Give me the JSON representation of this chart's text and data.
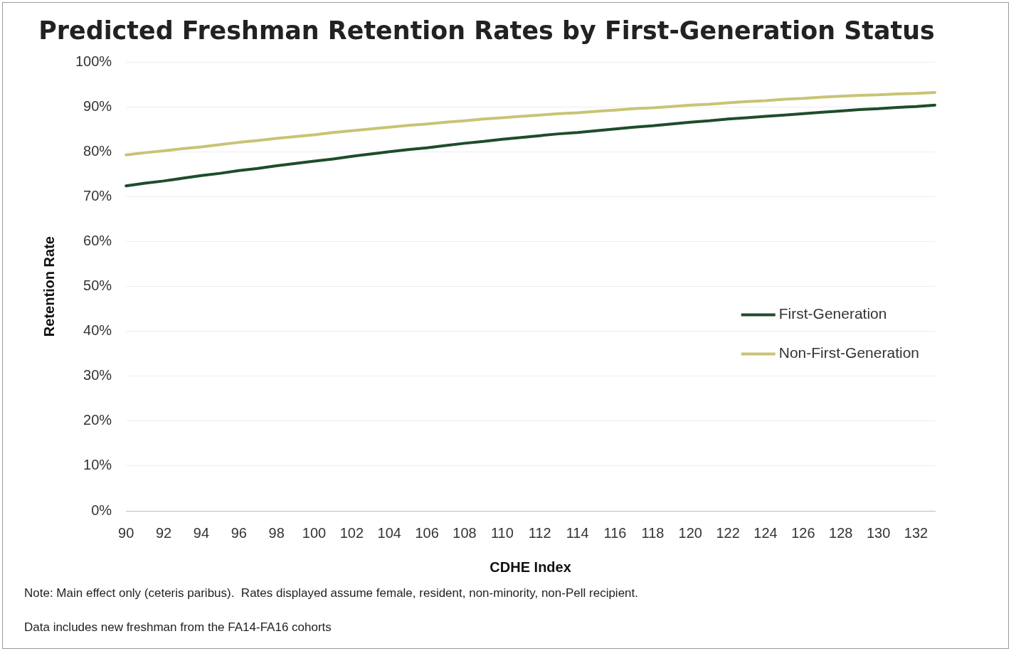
{
  "chart_data": {
    "type": "line",
    "title": "Predicted Freshman Retention Rates by First-Generation Status",
    "xlabel": "CDHE Index",
    "ylabel": "Retention Rate",
    "categories": [
      "90",
      null,
      "92",
      null,
      "94",
      null,
      "96",
      null,
      "98",
      null,
      "100",
      null,
      "102",
      null,
      "104",
      null,
      "106",
      null,
      "108",
      null,
      "110",
      null,
      "112",
      null,
      "114",
      null,
      "116",
      null,
      "118",
      null,
      "120",
      null,
      "122",
      null,
      "124",
      null,
      "126",
      null,
      "128",
      null,
      "130",
      null,
      "132",
      null
    ],
    "series": [
      {
        "name": "First-Generation",
        "color": "#1e4d2b",
        "values": [
          72.4,
          73.0,
          73.5,
          74.1,
          74.7,
          75.2,
          75.8,
          76.3,
          76.9,
          77.4,
          77.9,
          78.4,
          79.0,
          79.5,
          80.0,
          80.5,
          80.9,
          81.4,
          81.9,
          82.3,
          82.8,
          83.2,
          83.6,
          84.0,
          84.3,
          84.7,
          85.1,
          85.5,
          85.8,
          86.2,
          86.6,
          86.9,
          87.3,
          87.6,
          87.9,
          88.2,
          88.5,
          88.8,
          89.1,
          89.4,
          89.6,
          89.9,
          90.1,
          90.4
        ]
      },
      {
        "name": "Non-First-Generation",
        "color": "#c8c474",
        "values": [
          79.3,
          79.8,
          80.2,
          80.7,
          81.1,
          81.6,
          82.1,
          82.5,
          83.0,
          83.4,
          83.8,
          84.3,
          84.7,
          85.1,
          85.5,
          85.9,
          86.2,
          86.6,
          86.9,
          87.3,
          87.6,
          87.9,
          88.2,
          88.5,
          88.7,
          89.0,
          89.3,
          89.6,
          89.8,
          90.1,
          90.4,
          90.6,
          90.9,
          91.2,
          91.4,
          91.7,
          91.9,
          92.2,
          92.4,
          92.6,
          92.7,
          92.9,
          93.0,
          93.2
        ]
      }
    ],
    "ylim": [
      0,
      100
    ],
    "yticks": [
      {
        "value": 0,
        "label": "0%"
      },
      {
        "value": 10,
        "label": "10%"
      },
      {
        "value": 20,
        "label": "20%"
      },
      {
        "value": 30,
        "label": "30%"
      },
      {
        "value": 40,
        "label": "40%"
      },
      {
        "value": 50,
        "label": "50%"
      },
      {
        "value": 60,
        "label": "60%"
      },
      {
        "value": 70,
        "label": "70%"
      },
      {
        "value": 80,
        "label": "80%"
      },
      {
        "value": 90,
        "label": "90%"
      },
      {
        "value": 100,
        "label": "100%"
      }
    ],
    "grid": "y",
    "legend": "right",
    "marker": "none",
    "line_style": "solid",
    "annotations": [
      "Note: Main effect only (ceteris paribus).  Rates displayed assume female, resident, non-minority, non-Pell recipient.",
      "Data includes new freshman from the FA14-FA16 cohorts"
    ]
  }
}
